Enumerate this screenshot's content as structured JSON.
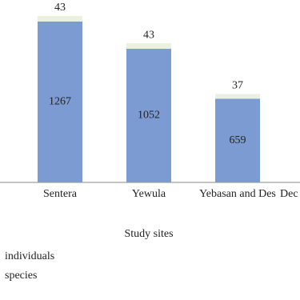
{
  "chart_data": {
    "type": "stacked_bar",
    "x_label": "Study sites",
    "categories": [
      "Sentera",
      "Yewula",
      "Yebasan and Des",
      "Dec"
    ],
    "series": [
      {
        "name": "individuals",
        "color": "#7b9bd2",
        "values": [
          1267,
          1052,
          659,
          null
        ]
      },
      {
        "name": "species",
        "color": "#ebf1de",
        "values": [
          43,
          43,
          37,
          null
        ]
      }
    ]
  }
}
